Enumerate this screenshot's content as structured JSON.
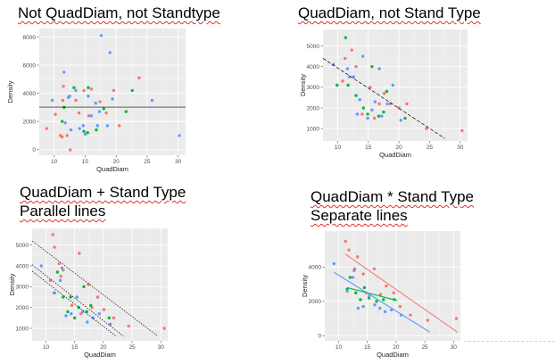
{
  "titles": {
    "p1": "Not QuadDiam, not Standtype",
    "p2": "QuadDiam, not Stand Type",
    "p3_line1": "QuadDiam + Stand Type",
    "p3_line2": "Parallel lines",
    "p4_line1": "QuadDiam * Stand Type",
    "p4_line2": "Separate lines"
  },
  "colors": {
    "red": "#f8766d",
    "green": "#00ba38",
    "blue": "#619cff"
  },
  "chart_data": [
    {
      "type": "scatter",
      "xlabel": "QuadDiam",
      "ylabel": "Density",
      "xlim": [
        7.6,
        31.2
      ],
      "ylim": [
        -400,
        8600
      ],
      "xticks": [
        10,
        15,
        20,
        25,
        30
      ],
      "yticks": [
        0,
        2000,
        4000,
        6000,
        8000
      ],
      "series": [
        {
          "color": "red",
          "points": [
            [
              8.8,
              1500
            ],
            [
              10.2,
              2500
            ],
            [
              11,
              1000
            ],
            [
              11.3,
              900
            ],
            [
              11.4,
              3500
            ],
            [
              11.5,
              4500
            ],
            [
              12.1,
              1000
            ],
            [
              12.6,
              -20
            ],
            [
              13.5,
              3500
            ],
            [
              14,
              2600
            ],
            [
              14.8,
              4200
            ],
            [
              15.6,
              2400
            ],
            [
              16,
              4300
            ],
            [
              17.4,
              3400
            ],
            [
              18.4,
              2600
            ],
            [
              19.6,
              4200
            ],
            [
              20.5,
              1700
            ],
            [
              23.7,
              5100
            ]
          ]
        },
        {
          "color": "green",
          "points": [
            [
              11.3,
              2000
            ],
            [
              11.6,
              3000
            ],
            [
              13.2,
              4400
            ],
            [
              14.8,
              1300
            ],
            [
              15.4,
              1200
            ],
            [
              15.5,
              4400
            ],
            [
              16.8,
              1400
            ],
            [
              18,
              2900
            ],
            [
              21.6,
              2700
            ],
            [
              22.6,
              4200
            ]
          ]
        },
        {
          "color": "blue",
          "points": [
            [
              9.7,
              3500
            ],
            [
              11.6,
              5500
            ],
            [
              11.8,
              1900
            ],
            [
              12.3,
              3700
            ],
            [
              12.5,
              3800
            ],
            [
              12.7,
              1400
            ],
            [
              13.5,
              4200
            ],
            [
              14.1,
              1500
            ],
            [
              14.7,
              1700
            ],
            [
              15,
              1100
            ],
            [
              15.5,
              3800
            ],
            [
              16,
              2400
            ],
            [
              16.7,
              3300
            ],
            [
              17,
              1700
            ],
            [
              17.3,
              2700
            ],
            [
              17.6,
              8100
            ],
            [
              18.6,
              1700
            ],
            [
              19,
              6900
            ],
            [
              19.4,
              3600
            ],
            [
              25.8,
              3500
            ],
            [
              30.2,
              1000
            ]
          ]
        }
      ],
      "lines": [
        {
          "style": "solid",
          "color": "black",
          "from": [
            7.6,
            3020
          ],
          "to": [
            31.2,
            3020
          ]
        }
      ]
    },
    {
      "type": "scatter",
      "xlabel": "QuadDiam",
      "ylabel": "Density",
      "xlim": [
        7.6,
        31.2
      ],
      "ylim": [
        400,
        5800
      ],
      "xticks": [
        10,
        15,
        20,
        25,
        30
      ],
      "yticks": [
        1000,
        2000,
        3000,
        4000,
        5000
      ],
      "series": [
        {
          "color": "red",
          "points": [
            [
              10.8,
              3300
            ],
            [
              11.2,
              4400
            ],
            [
              12.3,
              4800
            ],
            [
              12.6,
              3500
            ],
            [
              13,
              4000
            ],
            [
              14,
              1700
            ],
            [
              15.3,
              3000
            ],
            [
              16,
              1500
            ],
            [
              16.8,
              2200
            ],
            [
              17.6,
              2700
            ],
            [
              18.6,
              2200
            ],
            [
              20,
              2000
            ],
            [
              21.3,
              2200
            ],
            [
              24.5,
              1000
            ],
            [
              30.3,
              900
            ]
          ]
        },
        {
          "color": "green",
          "points": [
            [
              9.9,
              3100
            ],
            [
              11.3,
              5400
            ],
            [
              11.7,
              3100
            ],
            [
              13,
              2600
            ],
            [
              14.2,
              2000
            ],
            [
              14.9,
              1700
            ],
            [
              15.6,
              4000
            ],
            [
              16.7,
              1600
            ],
            [
              17.5,
              1800
            ],
            [
              18,
              2800
            ],
            [
              21,
              1500
            ]
          ]
        },
        {
          "color": "blue",
          "points": [
            [
              9.3,
              4100
            ],
            [
              11.6,
              3900
            ],
            [
              11.9,
              3500
            ],
            [
              12.6,
              3500
            ],
            [
              13.2,
              1700
            ],
            [
              13.6,
              2400
            ],
            [
              14.1,
              4500
            ],
            [
              14.9,
              1500
            ],
            [
              15.6,
              1900
            ],
            [
              16.1,
              2300
            ],
            [
              16.8,
              3900
            ],
            [
              17.2,
              1600
            ],
            [
              18.1,
              2200
            ],
            [
              19,
              3100
            ],
            [
              20.3,
              1400
            ]
          ]
        }
      ],
      "lines": [
        {
          "style": "dashed",
          "color": "black",
          "from": [
            7.6,
            4400
          ],
          "to": [
            27.5,
            520
          ]
        }
      ]
    },
    {
      "type": "scatter",
      "xlabel": "QuadDiam",
      "ylabel": "Density",
      "xlim": [
        7.6,
        31.2
      ],
      "ylim": [
        400,
        5800
      ],
      "xticks": [
        10,
        15,
        20,
        25,
        30
      ],
      "yticks": [
        1000,
        2000,
        3000,
        4000,
        5000
      ],
      "series": [
        {
          "color": "red",
          "points": [
            [
              10.8,
              3300
            ],
            [
              11.2,
              5500
            ],
            [
              11.5,
              4900
            ],
            [
              12.3,
              4100
            ],
            [
              12.6,
              3500
            ],
            [
              13,
              3800
            ],
            [
              14.5,
              2100
            ],
            [
              15.8,
              4600
            ],
            [
              16.1,
              1700
            ],
            [
              17.4,
              3100
            ],
            [
              18,
              2000
            ],
            [
              19,
              2500
            ],
            [
              20.1,
              1900
            ],
            [
              21.8,
              1500
            ],
            [
              24.4,
              1100
            ],
            [
              30.6,
              1000
            ]
          ]
        },
        {
          "color": "green",
          "points": [
            [
              11.5,
              2700
            ],
            [
              12,
              3700
            ],
            [
              13,
              2500
            ],
            [
              13.8,
              1800
            ],
            [
              14.3,
              2500
            ],
            [
              15,
              1500
            ],
            [
              15.7,
              2000
            ],
            [
              16.6,
              3000
            ],
            [
              17.1,
              1800
            ],
            [
              17.8,
              2100
            ],
            [
              21,
              1500
            ]
          ]
        },
        {
          "color": "blue",
          "points": [
            [
              9.2,
              4000
            ],
            [
              11.4,
              2700
            ],
            [
              12.5,
              3300
            ],
            [
              12.8,
              3900
            ],
            [
              13.5,
              1600
            ],
            [
              14.4,
              1700
            ],
            [
              15.4,
              2500
            ],
            [
              16.4,
              1800
            ],
            [
              17.2,
              1300
            ],
            [
              18.2,
              1500
            ],
            [
              19.3,
              1700
            ],
            [
              21.2,
              1200
            ]
          ]
        }
      ],
      "lines": [
        {
          "style": "dotted",
          "color": "black",
          "from": [
            7.6,
            5200
          ],
          "to": [
            29.5,
            620
          ]
        },
        {
          "style": "dotted",
          "color": "black",
          "from": [
            7.6,
            4050
          ],
          "to": [
            23.5,
            620
          ]
        },
        {
          "style": "dotted",
          "color": "black",
          "from": [
            7.6,
            3750
          ],
          "to": [
            22.2,
            620
          ]
        }
      ]
    },
    {
      "type": "scatter",
      "xlabel": "QuadDiam",
      "ylabel": "Density",
      "xlim": [
        7.6,
        31.2
      ],
      "ylim": [
        -300,
        6100
      ],
      "xticks": [
        10,
        15,
        20,
        25,
        30
      ],
      "yticks": [
        0,
        2000,
        4000
      ],
      "series": [
        {
          "color": "red",
          "points": [
            [
              11.2,
              5500
            ],
            [
              11.8,
              5000
            ],
            [
              12.7,
              3800
            ],
            [
              13.3,
              4600
            ],
            [
              14.3,
              3600
            ],
            [
              14.8,
              2500
            ],
            [
              16.2,
              3900
            ],
            [
              17.3,
              2400
            ],
            [
              18.3,
              2900
            ],
            [
              19.6,
              2500
            ],
            [
              20.7,
              1700
            ],
            [
              22.5,
              1200
            ],
            [
              25.5,
              900
            ],
            [
              30.5,
              1000
            ]
          ]
        },
        {
          "color": "green",
          "points": [
            [
              11.5,
              2700
            ],
            [
              12,
              3400
            ],
            [
              13,
              2500
            ],
            [
              13.8,
              2100
            ],
            [
              14.5,
              2800
            ],
            [
              15.3,
              2200
            ],
            [
              16.6,
              2000
            ],
            [
              17.8,
              2100
            ],
            [
              19.7,
              2100
            ]
          ]
        },
        {
          "color": "blue",
          "points": [
            [
              9.2,
              4200
            ],
            [
              11.5,
              2600
            ],
            [
              12.5,
              3400
            ],
            [
              12.8,
              3900
            ],
            [
              13.4,
              1600
            ],
            [
              14.3,
              1700
            ],
            [
              15.3,
              2300
            ],
            [
              16.3,
              1800
            ],
            [
              17.2,
              1600
            ],
            [
              18.1,
              1400
            ],
            [
              19.2,
              1500
            ],
            [
              20.9,
              1200
            ]
          ]
        }
      ],
      "lines": [
        {
          "style": "solid",
          "color": "red",
          "from": [
            11.2,
            4750
          ],
          "to": [
            30.7,
            200
          ]
        },
        {
          "style": "solid",
          "color": "green",
          "from": [
            11.5,
            2800
          ],
          "to": [
            20.2,
            2050
          ]
        },
        {
          "style": "solid",
          "color": "blue",
          "from": [
            9.2,
            3700
          ],
          "to": [
            25.9,
            200
          ]
        }
      ]
    }
  ]
}
